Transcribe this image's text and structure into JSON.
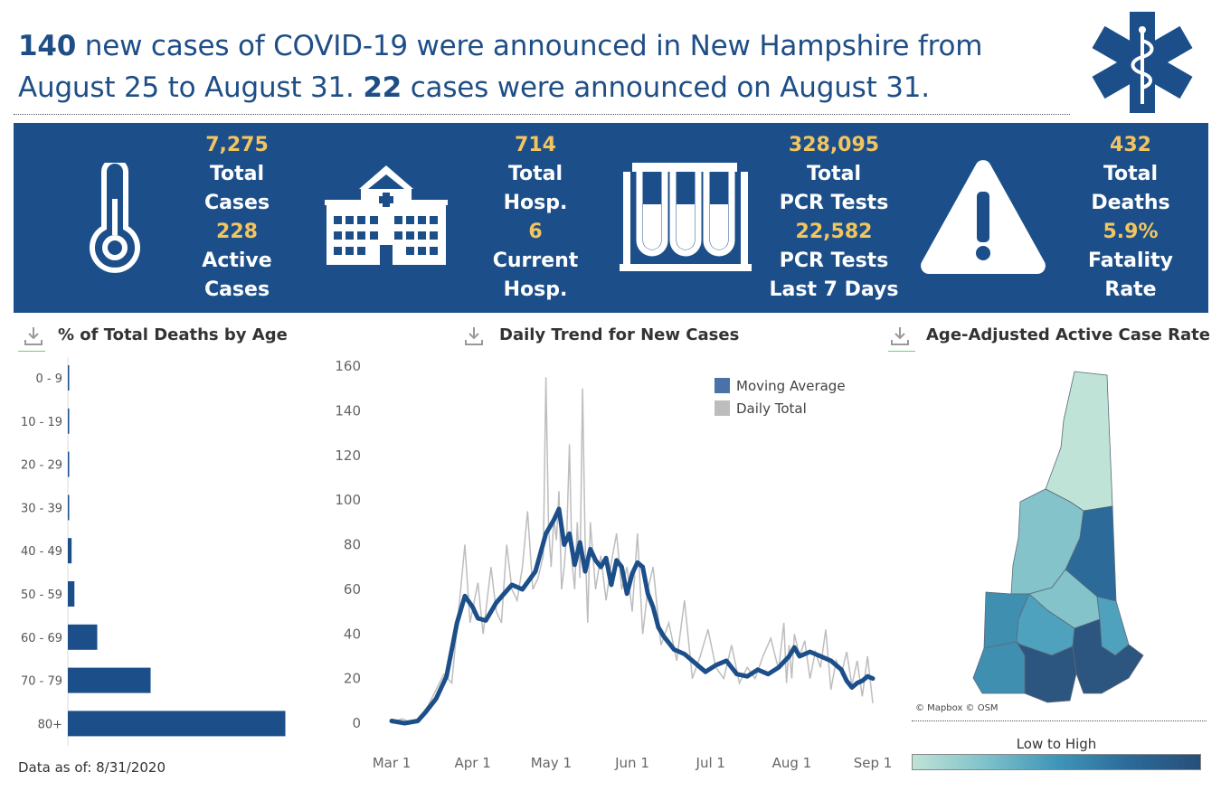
{
  "headline": {
    "count_new": "140",
    "text_1": " new cases of COVID-19 were announced in New Hampshire from August 25 to August 31. ",
    "count_day": "22",
    "text_2": " cases were announced on August 31."
  },
  "stats": [
    {
      "v1": "7,275",
      "l1a": "Total",
      "l1b": "Cases",
      "v2": "228",
      "l2a": "Active",
      "l2b": "Cases"
    },
    {
      "v1": "714",
      "l1a": "Total",
      "l1b": "Hosp.",
      "v2": "6",
      "l2a": "Current",
      "l2b": "Hosp."
    },
    {
      "v1": "328,095",
      "l1a": "Total",
      "l1b": "PCR Tests",
      "v2": "22,582",
      "l2a": "PCR Tests",
      "l2b": "Last 7 Days"
    },
    {
      "v1": "432",
      "l1a": "Total",
      "l1b": "Deaths",
      "v2": "5.9%",
      "l2a": "Fatality",
      "l2b": "Rate"
    }
  ],
  "sections": {
    "deaths_by_age": "% of Total Deaths by Age",
    "daily_trend": "Daily Trend for New Cases",
    "active_rate": "Age-Adjusted Active Case Rate"
  },
  "data_asof": "Data as of: 8/31/2020",
  "map": {
    "attribution": "© Mapbox © OSM",
    "scale_label": "Low to High",
    "scale_colors": [
      "#bfe3d6",
      "#7fc2cb",
      "#3f96b8",
      "#2c6a9a",
      "#264f78"
    ]
  },
  "colors": {
    "brand_blue": "#1c4f8a",
    "stat_value": "#f2c55f",
    "bar_blue": "#1c4f8a",
    "daily_gray": "#bdbdbd"
  },
  "chart_data": [
    {
      "type": "bar",
      "title": "% of Total Deaths by Age",
      "orientation": "horizontal",
      "categories": [
        "0 - 9",
        "10 - 19",
        "20 - 29",
        "30 - 39",
        "40 - 49",
        "50 - 59",
        "60 - 69",
        "70 - 79",
        "80+"
      ],
      "values": [
        0.2,
        0.2,
        0.2,
        0.2,
        1.6,
        2.8,
        12.5,
        35.2,
        92.5
      ]
    },
    {
      "type": "line",
      "title": "Daily Trend for New Cases",
      "ylim": [
        0,
        160
      ],
      "yticks": [
        0,
        20,
        40,
        60,
        80,
        100,
        120,
        140,
        160
      ],
      "xticks": [
        "Mar 1",
        "Apr 1",
        "May 1",
        "Jun 1",
        "Jul 1",
        "Aug 1",
        "Sep 1"
      ],
      "xtick_days": [
        0,
        31,
        61,
        92,
        122,
        153,
        184
      ],
      "legend": [
        "Moving Average",
        "Daily Total"
      ],
      "series": [
        {
          "name": "Moving Average",
          "color": "#1c4f8a",
          "x": [
            0,
            5,
            10,
            13,
            17,
            21,
            25,
            28,
            31,
            33,
            36,
            40,
            43,
            46,
            50,
            55,
            59,
            62,
            64,
            66,
            68,
            70,
            72,
            74,
            76,
            78,
            80,
            82,
            84,
            86,
            88,
            90,
            92,
            94,
            96,
            98,
            100,
            102,
            104,
            106,
            108,
            112,
            116,
            118,
            120,
            124,
            128,
            132,
            136,
            140,
            144,
            148,
            152,
            154,
            156,
            160,
            164,
            168,
            170,
            172,
            174,
            176,
            178,
            180,
            182,
            184
          ],
          "y": [
            1,
            0,
            1,
            5,
            11,
            21,
            45,
            57,
            52,
            47,
            46,
            54,
            58,
            62,
            60,
            68,
            85,
            91,
            96,
            80,
            85,
            71,
            81,
            68,
            78,
            73,
            70,
            74,
            62,
            73,
            70,
            58,
            67,
            72,
            70,
            58,
            52,
            43,
            39,
            36,
            33,
            31,
            27,
            25,
            23,
            26,
            28,
            22,
            21,
            24,
            22,
            25,
            30,
            34,
            30,
            32,
            30,
            28,
            26,
            24,
            19,
            16,
            18,
            19,
            21,
            20
          ]
        },
        {
          "name": "Daily Total",
          "color": "#bdbdbd",
          "x": [
            0,
            4,
            8,
            11,
            14,
            17,
            20,
            23,
            26,
            28,
            30,
            33,
            35,
            38,
            40,
            42,
            44,
            46,
            48,
            50,
            52,
            54,
            56,
            58,
            59,
            60,
            61,
            62,
            63,
            64,
            65,
            66,
            67,
            68,
            69,
            70,
            71,
            72,
            73,
            74,
            75,
            76,
            78,
            80,
            82,
            84,
            86,
            88,
            90,
            92,
            94,
            96,
            98,
            100,
            103,
            106,
            109,
            112,
            115,
            118,
            121,
            124,
            127,
            130,
            133,
            136,
            139,
            142,
            145,
            148,
            150,
            151,
            152,
            153,
            154,
            156,
            158,
            160,
            162,
            164,
            166,
            168,
            170,
            172,
            174,
            176,
            178,
            180,
            182,
            184
          ],
          "y": [
            0,
            2,
            0,
            3,
            8,
            15,
            22,
            18,
            55,
            80,
            45,
            63,
            40,
            70,
            50,
            45,
            80,
            60,
            55,
            70,
            95,
            60,
            65,
            75,
            155,
            88,
            70,
            92,
            82,
            104,
            60,
            70,
            85,
            125,
            72,
            60,
            90,
            65,
            150,
            80,
            45,
            90,
            60,
            75,
            55,
            72,
            85,
            60,
            70,
            50,
            85,
            40,
            60,
            70,
            35,
            45,
            28,
            55,
            20,
            30,
            42,
            25,
            20,
            35,
            18,
            25,
            20,
            30,
            38,
            24,
            45,
            18,
            35,
            20,
            40,
            30,
            37,
            20,
            32,
            25,
            42,
            15,
            28,
            22,
            32,
            17,
            28,
            12,
            30,
            9
          ]
        }
      ]
    }
  ]
}
